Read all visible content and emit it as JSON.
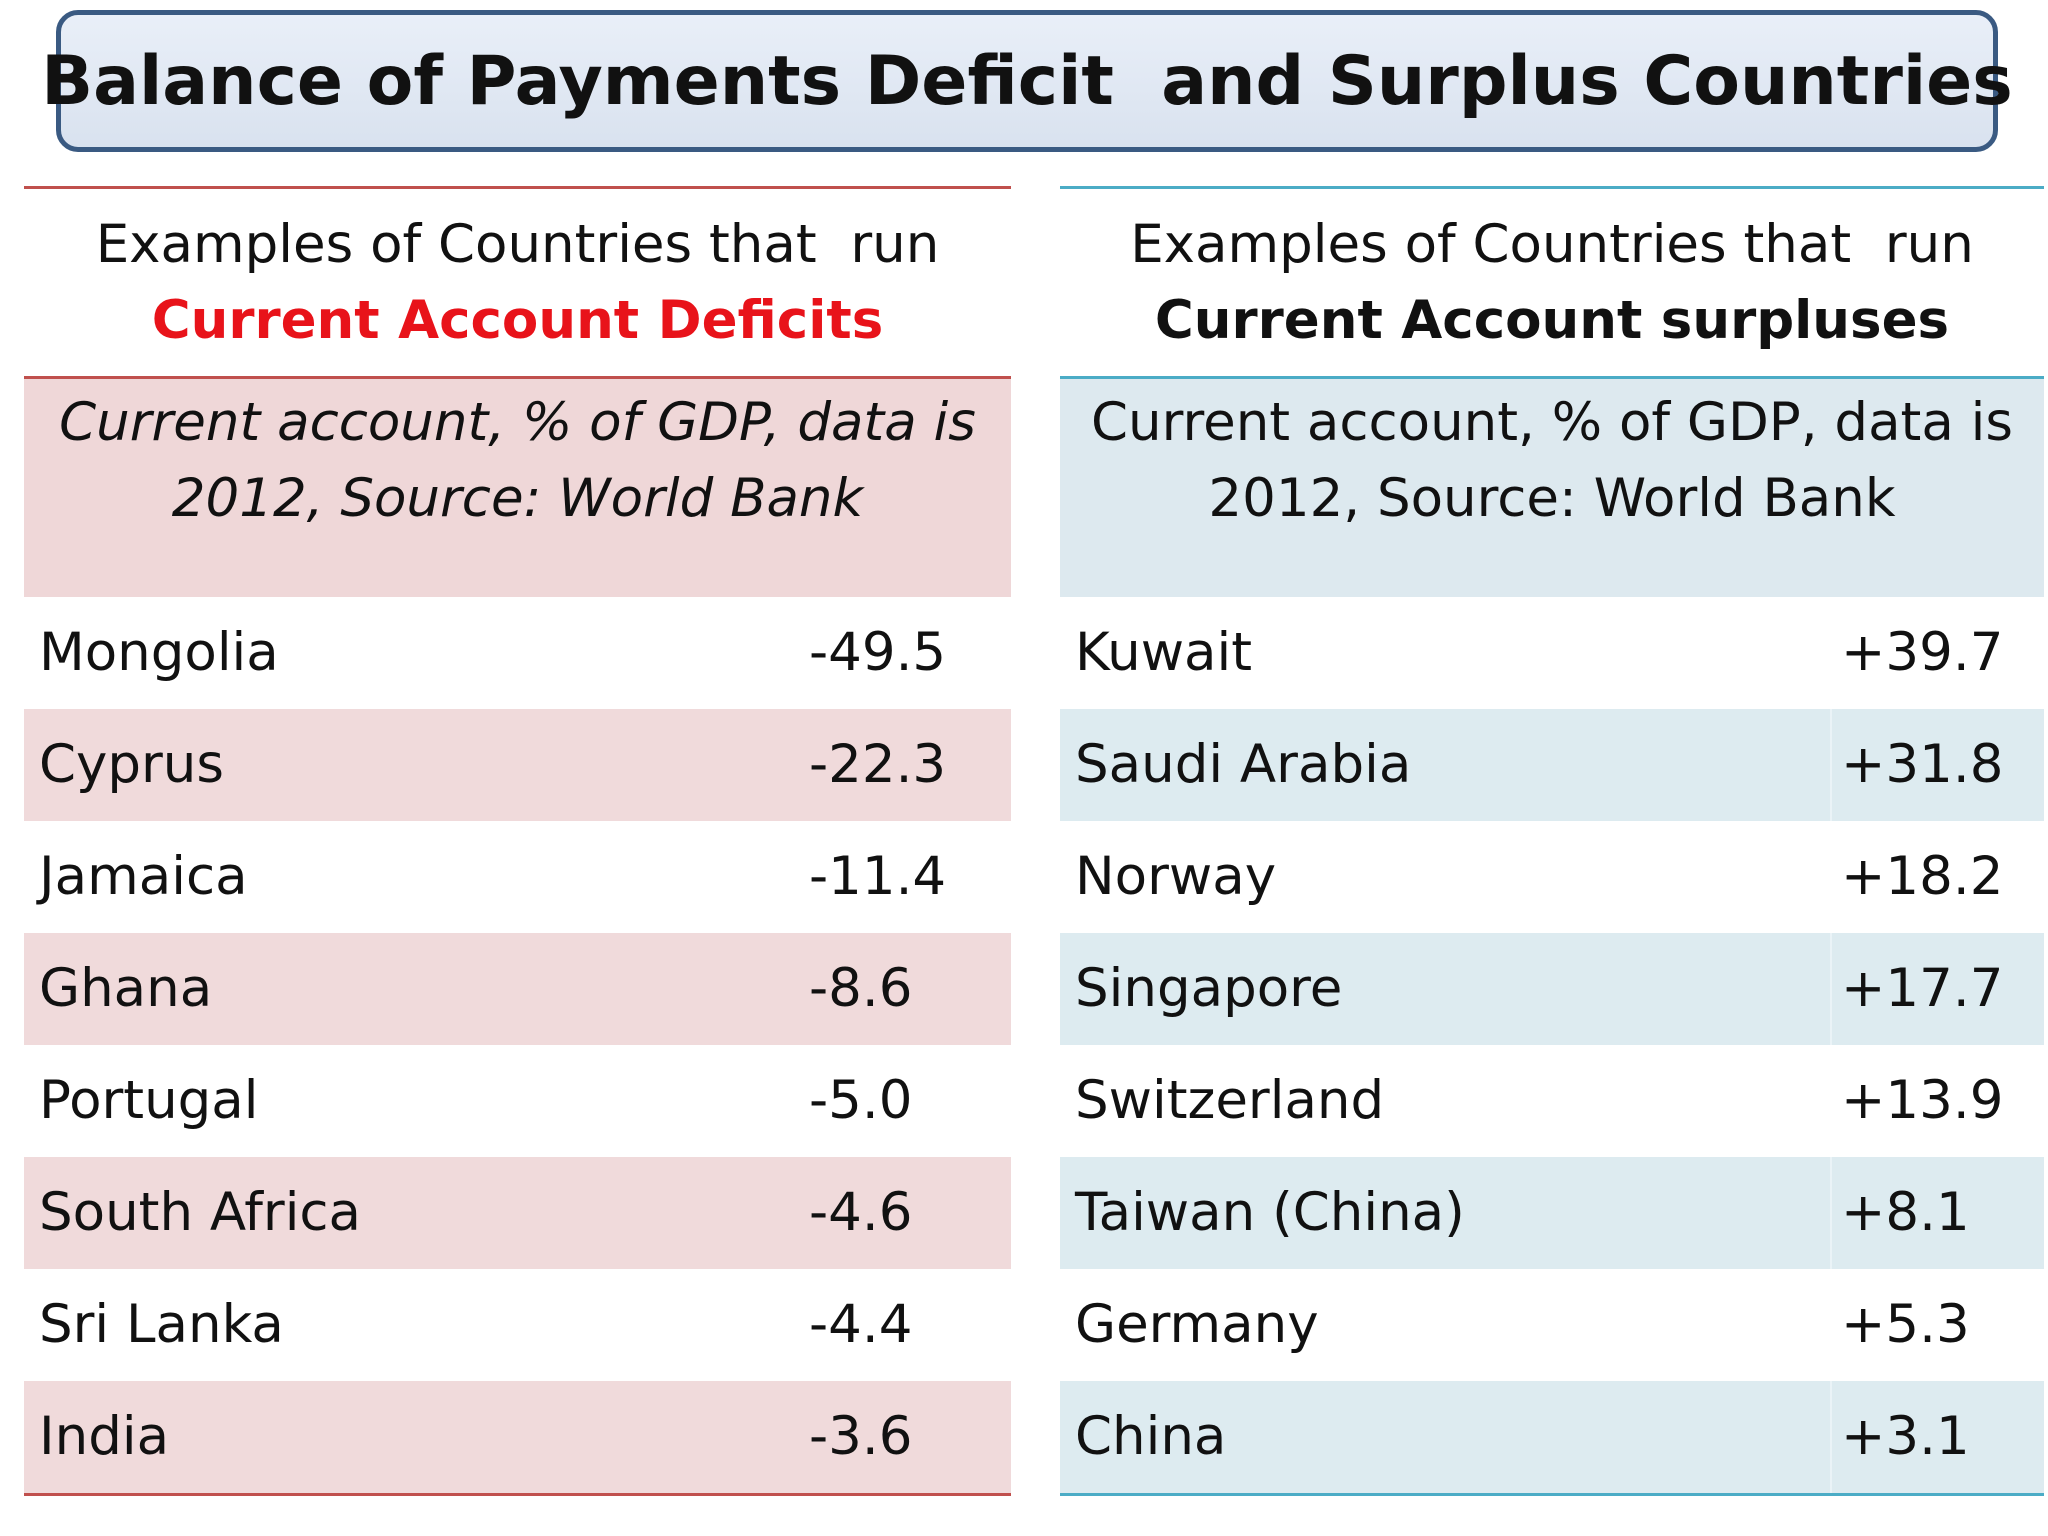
{
  "title": "Balance of Payments Deficit  and Surplus Countries",
  "colors": {
    "deficit_accent": "#e8131a",
    "deficit_rule": "#c0504d",
    "surplus_rule": "#4bacc6",
    "deficit_fill": "#efd7d8",
    "surplus_fill": "#dde9ef",
    "title_border": "#3a5a82"
  },
  "deficit": {
    "intro_line1": "Examples of Countries that  run",
    "intro_line2": "Current Account Deficits",
    "source_line1": "Current account, % of GDP, data is",
    "source_line2": "2012, Source: World Bank",
    "rows": [
      {
        "country": "Mongolia",
        "value": "-49.5"
      },
      {
        "country": "Cyprus",
        "value": "-22.3"
      },
      {
        "country": "Jamaica",
        "value": "-11.4"
      },
      {
        "country": "Ghana",
        "value": "-8.6"
      },
      {
        "country": "Portugal",
        "value": "-5.0"
      },
      {
        "country": "South Africa",
        "value": "-4.6"
      },
      {
        "country": "Sri Lanka",
        "value": "-4.4"
      },
      {
        "country": "India",
        "value": "-3.6"
      }
    ]
  },
  "surplus": {
    "intro_line1": "Examples of Countries that  run",
    "intro_line2": "Current Account surpluses",
    "source_line1": "Current account, % of GDP, data is",
    "source_line2": "2012, Source: World Bank",
    "rows": [
      {
        "country": "Kuwait",
        "value": "+39.7"
      },
      {
        "country": "Saudi Arabia",
        "value": "+31.8"
      },
      {
        "country": "Norway",
        "value": "+18.2"
      },
      {
        "country": "Singapore",
        "value": "+17.7"
      },
      {
        "country": "Switzerland",
        "value": "+13.9"
      },
      {
        "country": "Taiwan (China)",
        "value": "+8.1"
      },
      {
        "country": "Germany",
        "value": "+5.3"
      },
      {
        "country": "China",
        "value": "+3.1"
      }
    ]
  }
}
